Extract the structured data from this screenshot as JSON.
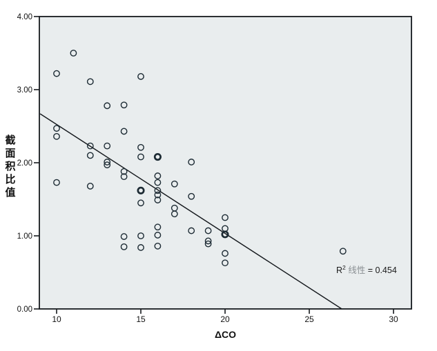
{
  "figure": {
    "background": "#ffffff",
    "plot_background": "#e9edee",
    "frame_color": "#15191d",
    "point_color": "#1c2a33",
    "regression_color": "#15191d",
    "tick_label_color": "#111111",
    "annotation_color": "#1a1a1a",
    "annotation_label_color": "#8a8f93"
  },
  "chart_data": {
    "type": "scatter",
    "title": "",
    "xlabel": "ΔCO",
    "ylabel": "截面积比值",
    "ylabel_chars": [
      "截",
      "面",
      "积",
      "比",
      "值"
    ],
    "xlim": [
      8.97,
      31.07
    ],
    "ylim": [
      0,
      4
    ],
    "x_ticks": [
      10,
      15,
      20,
      25,
      30
    ],
    "x_tick_labels": [
      "10",
      "15",
      "20",
      "25",
      "30"
    ],
    "y_ticks": [
      0,
      1,
      2,
      3,
      4
    ],
    "y_tick_labels": [
      "0.00",
      "1.00",
      "2.00",
      "3.00",
      "4.00"
    ],
    "grid": false,
    "legend": "none",
    "marker": "open-circle",
    "points": [
      [
        10,
        3.22
      ],
      [
        11,
        3.5
      ],
      [
        12,
        3.11
      ],
      [
        15,
        3.18
      ],
      [
        13,
        2.78
      ],
      [
        14,
        2.79
      ],
      [
        10,
        2.47
      ],
      [
        10,
        2.36
      ],
      [
        14,
        2.43
      ],
      [
        12,
        2.23
      ],
      [
        13,
        2.23
      ],
      [
        15,
        2.21
      ],
      [
        12,
        2.1
      ],
      [
        15,
        2.08
      ],
      [
        16,
        2.08,
        1
      ],
      [
        18,
        2.01
      ],
      [
        13,
        2.01
      ],
      [
        13,
        1.97
      ],
      [
        14,
        1.88
      ],
      [
        14,
        1.81
      ],
      [
        10,
        1.73
      ],
      [
        12,
        1.68
      ],
      [
        16,
        1.82
      ],
      [
        16,
        1.73
      ],
      [
        17,
        1.71
      ],
      [
        15,
        1.62,
        1
      ],
      [
        16,
        1.62
      ],
      [
        16,
        1.56
      ],
      [
        16,
        1.49
      ],
      [
        15,
        1.45
      ],
      [
        18,
        1.54
      ],
      [
        17,
        1.38
      ],
      [
        17,
        1.3
      ],
      [
        20,
        1.25
      ],
      [
        20,
        1.1
      ],
      [
        20,
        1.02,
        1
      ],
      [
        16,
        1.12
      ],
      [
        16,
        1.01
      ],
      [
        16,
        0.86
      ],
      [
        14,
        0.99
      ],
      [
        14,
        0.85
      ],
      [
        15,
        1.0
      ],
      [
        15,
        0.84
      ],
      [
        18,
        1.07
      ],
      [
        19,
        1.07
      ],
      [
        19,
        0.93
      ],
      [
        19,
        0.89
      ],
      [
        20,
        0.76
      ],
      [
        20,
        0.63
      ],
      [
        27,
        0.79
      ]
    ],
    "regression_line": {
      "x1": 9.02,
      "y1": 2.67,
      "x2": 26.93,
      "y2": 0.0
    },
    "annotation": {
      "prefix": "R",
      "superscript": "2",
      "label": "线性",
      "value_text": "= 0.454",
      "full_text": "R² 线性 = 0.454"
    }
  }
}
